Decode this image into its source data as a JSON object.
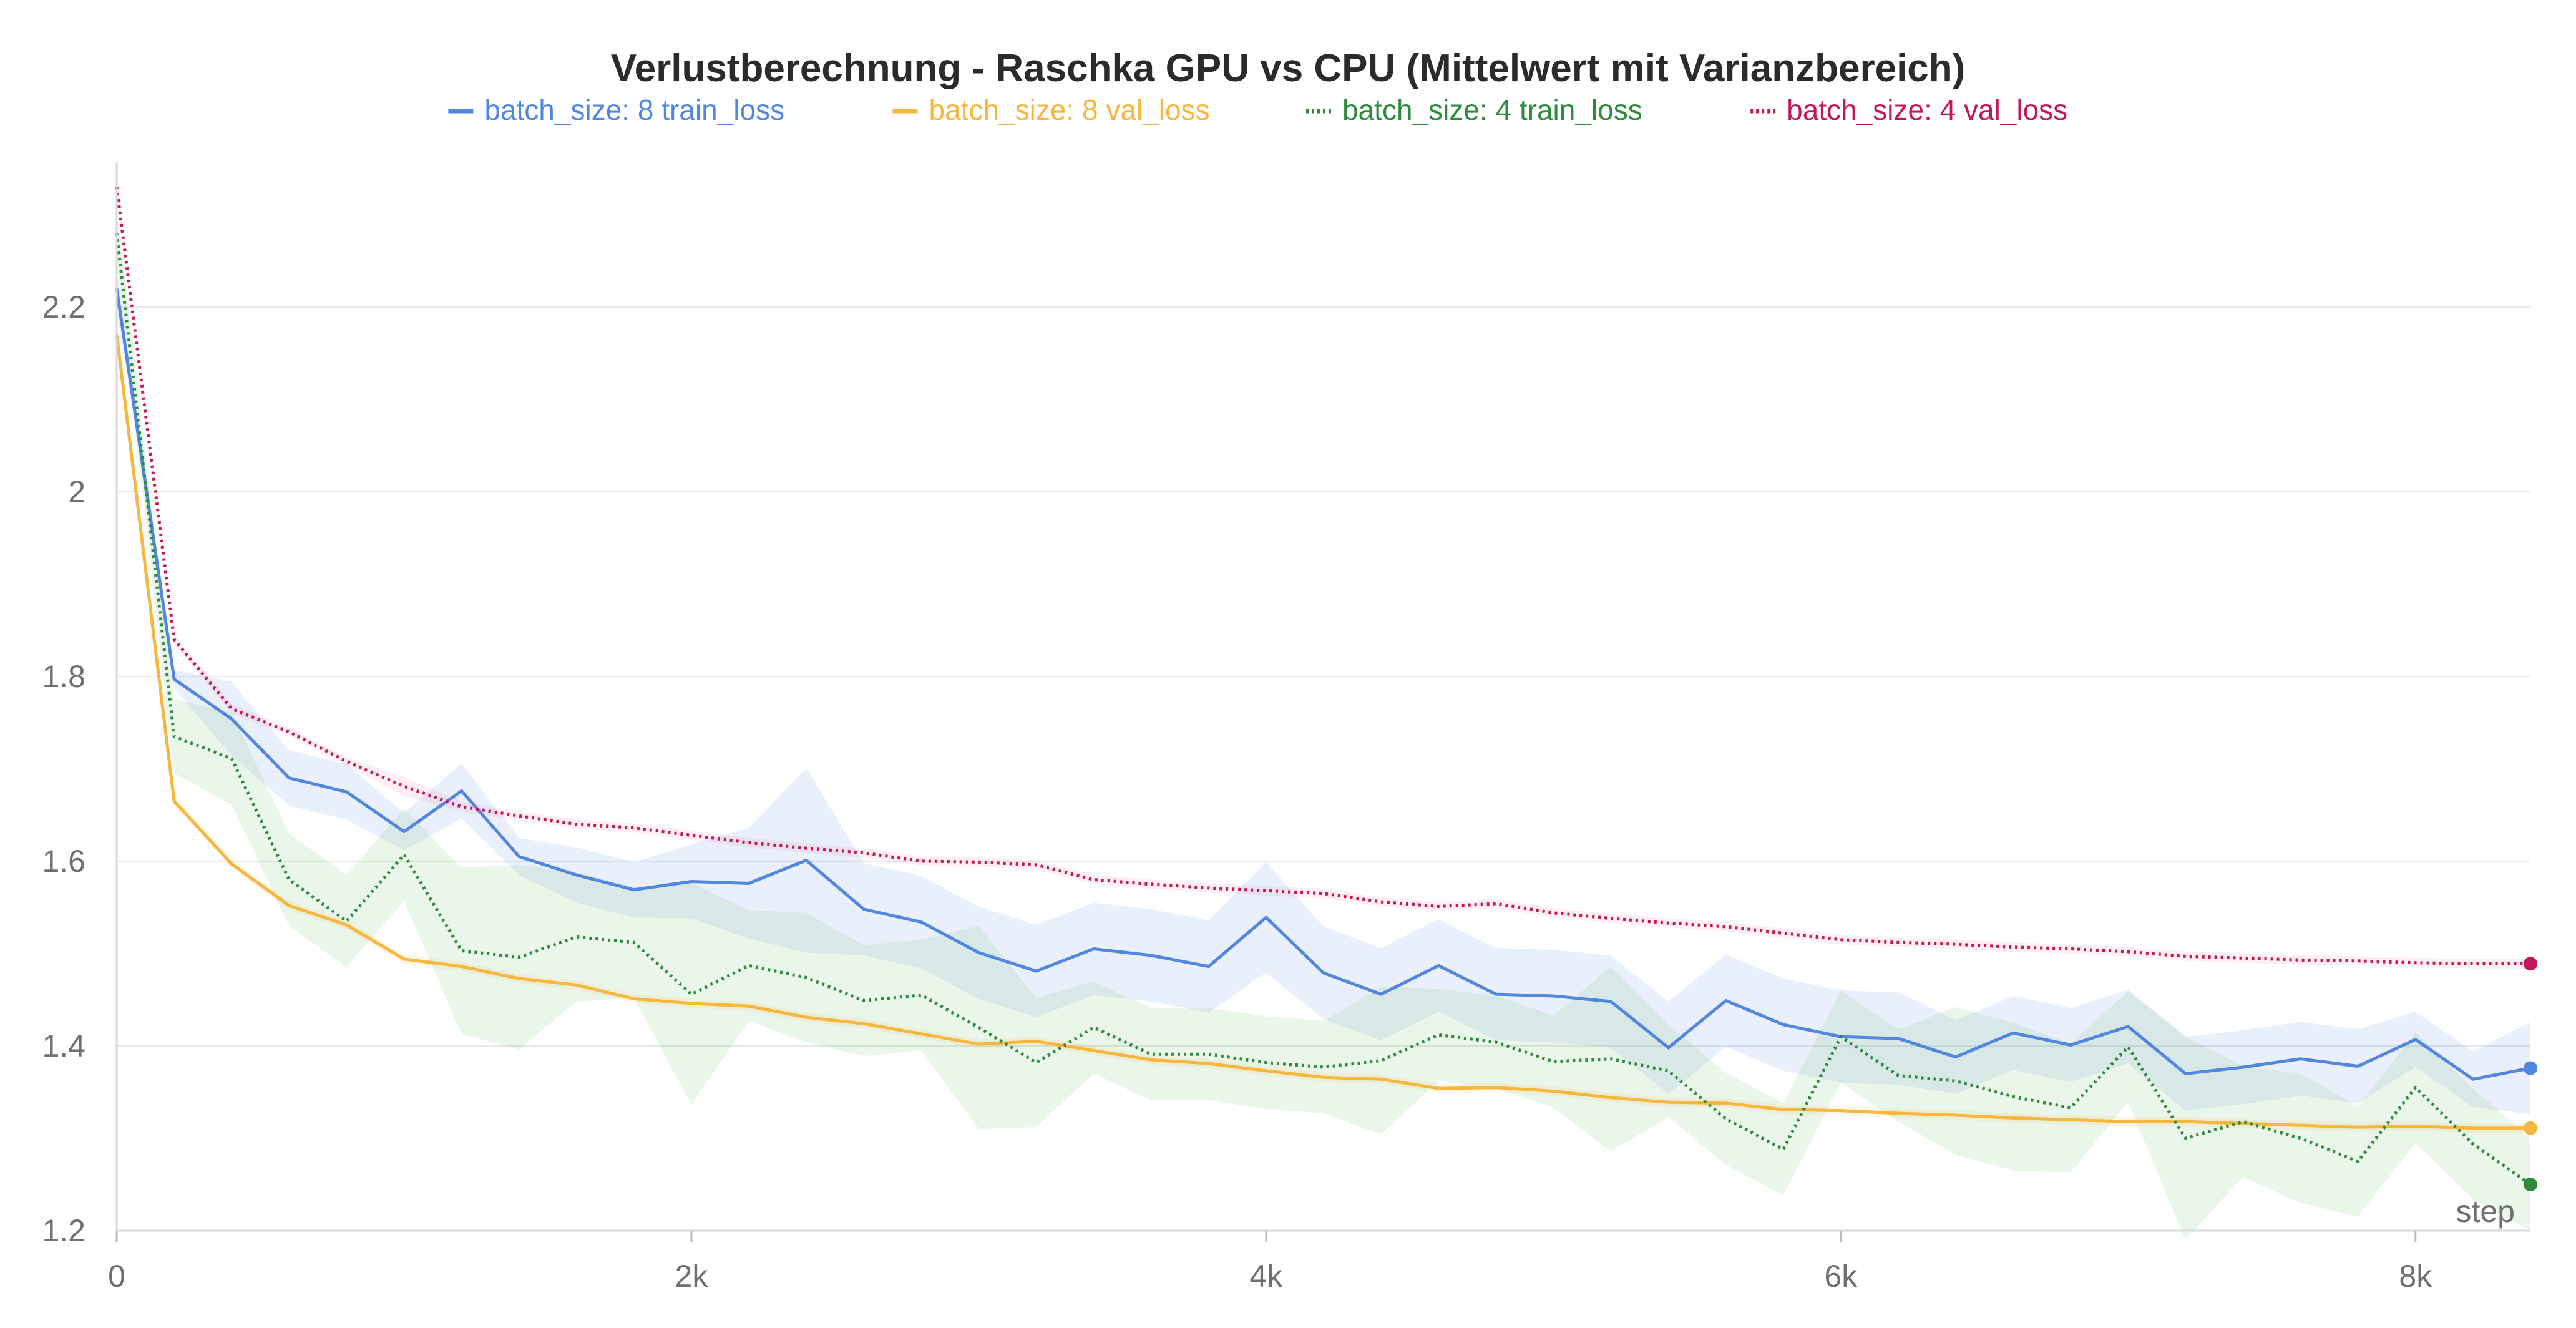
{
  "chart_data": {
    "type": "line",
    "title": "Verlustberechnung - Raschka GPU vs CPU (Mittelwert mit Varianzbereich)",
    "xlabel": "step",
    "ylabel": "",
    "xlim": [
      0,
      8400
    ],
    "ylim": [
      1.2,
      2.36
    ],
    "x_ticks": [
      0,
      2000,
      4000,
      6000,
      8000
    ],
    "x_tick_labels": [
      "0",
      "2k",
      "4k",
      "6k",
      "8k"
    ],
    "y_ticks": [
      1.2,
      1.4,
      1.6,
      1.8,
      2.0,
      2.2
    ],
    "y_tick_labels": [
      "1.2",
      "1.4",
      "1.6",
      "1.8",
      "2",
      "2.2"
    ],
    "grid": true,
    "legend_position": "top-center",
    "series": [
      {
        "name": "batch_size: 8 train_loss",
        "color": "#5287e0",
        "style": "solid",
        "band_color": "#5287e0",
        "x": [
          0,
          200,
          400,
          600,
          800,
          1000,
          1200,
          1400,
          1600,
          1800,
          2000,
          2200,
          2400,
          2600,
          2800,
          3000,
          3200,
          3400,
          3600,
          3800,
          4000,
          4200,
          4400,
          4600,
          4800,
          5000,
          5200,
          5400,
          5600,
          5800,
          6000,
          6200,
          6400,
          6600,
          6800,
          7000,
          7200,
          7400,
          7600,
          7800,
          8000,
          8200,
          8400
        ],
        "y": [
          2.22,
          1.797,
          1.754,
          1.69,
          1.675,
          1.632,
          1.676,
          1.605,
          1.585,
          1.569,
          1.578,
          1.576,
          1.601,
          1.548,
          1.534,
          1.501,
          1.481,
          1.505,
          1.498,
          1.486,
          1.539,
          1.479,
          1.456,
          1.487,
          1.456,
          1.454,
          1.448,
          1.398,
          1.449,
          1.423,
          1.41,
          1.408,
          1.388,
          1.414,
          1.401,
          1.421,
          1.37,
          1.377,
          1.386,
          1.378,
          1.407,
          1.364,
          1.376
        ],
        "band": [
          0.02,
          0.01,
          0.04,
          0.03,
          0.03,
          0.02,
          0.03,
          0.02,
          0.03,
          0.03,
          0.04,
          0.06,
          0.1,
          0.05,
          0.05,
          0.05,
          0.05,
          0.05,
          0.05,
          0.05,
          0.06,
          0.05,
          0.05,
          0.05,
          0.05,
          0.05,
          0.05,
          0.05,
          0.05,
          0.05,
          0.05,
          0.05,
          0.04,
          0.04,
          0.04,
          0.04,
          0.04,
          0.04,
          0.04,
          0.04,
          0.03,
          0.03,
          0.05
        ]
      },
      {
        "name": "batch_size: 8 val_loss",
        "color": "#f6b73c",
        "style": "solid",
        "band_color": "#f6b73c",
        "x": [
          0,
          200,
          400,
          600,
          800,
          1000,
          1200,
          1400,
          1600,
          1800,
          2000,
          2200,
          2400,
          2600,
          2800,
          3000,
          3200,
          3400,
          3600,
          3800,
          4000,
          4200,
          4400,
          4600,
          4800,
          5000,
          5200,
          5400,
          5600,
          5800,
          6000,
          6200,
          6400,
          6600,
          6800,
          7000,
          7200,
          7400,
          7600,
          7800,
          8000,
          8200,
          8400
        ],
        "y": [
          2.17,
          1.665,
          1.597,
          1.552,
          1.531,
          1.494,
          1.486,
          1.473,
          1.466,
          1.451,
          1.446,
          1.443,
          1.431,
          1.424,
          1.413,
          1.402,
          1.405,
          1.395,
          1.385,
          1.381,
          1.373,
          1.366,
          1.364,
          1.354,
          1.355,
          1.351,
          1.344,
          1.339,
          1.338,
          1.331,
          1.33,
          1.327,
          1.325,
          1.322,
          1.32,
          1.318,
          1.318,
          1.316,
          1.314,
          1.312,
          1.313,
          1.311,
          1.311
        ],
        "band": [
          0.01,
          0.005,
          0.005,
          0.005,
          0.005,
          0.005,
          0.005,
          0.005,
          0.005,
          0.005,
          0.005,
          0.005,
          0.005,
          0.005,
          0.005,
          0.005,
          0.005,
          0.005,
          0.005,
          0.005,
          0.005,
          0.005,
          0.005,
          0.005,
          0.005,
          0.005,
          0.005,
          0.005,
          0.005,
          0.005,
          0.005,
          0.005,
          0.005,
          0.005,
          0.005,
          0.005,
          0.005,
          0.005,
          0.005,
          0.005,
          0.005,
          0.005,
          0.005
        ]
      },
      {
        "name": "batch_size: 4 train_loss",
        "color": "#2e8b3e",
        "style": "dotted",
        "band_color": "#5cb85c",
        "x": [
          0,
          200,
          400,
          600,
          800,
          1000,
          1200,
          1400,
          1600,
          1800,
          2000,
          2200,
          2400,
          2600,
          2800,
          3000,
          3200,
          3400,
          3600,
          3800,
          4000,
          4200,
          4400,
          4600,
          4800,
          5000,
          5200,
          5400,
          5600,
          5800,
          6000,
          6200,
          6400,
          6600,
          6800,
          7000,
          7200,
          7400,
          7600,
          7800,
          8000,
          8200,
          8400
        ],
        "y": [
          2.28,
          1.735,
          1.711,
          1.58,
          1.535,
          1.607,
          1.503,
          1.496,
          1.518,
          1.512,
          1.456,
          1.487,
          1.474,
          1.449,
          1.455,
          1.42,
          1.382,
          1.42,
          1.391,
          1.391,
          1.382,
          1.377,
          1.384,
          1.412,
          1.404,
          1.383,
          1.386,
          1.373,
          1.321,
          1.288,
          1.41,
          1.368,
          1.362,
          1.345,
          1.333,
          1.399,
          1.3,
          1.318,
          1.3,
          1.275,
          1.355,
          1.294,
          1.25
        ],
        "band": [
          0.03,
          0.04,
          0.05,
          0.05,
          0.05,
          0.05,
          0.09,
          0.1,
          0.07,
          0.06,
          0.12,
          0.06,
          0.07,
          0.06,
          0.06,
          0.11,
          0.07,
          0.05,
          0.05,
          0.05,
          0.05,
          0.05,
          0.08,
          0.05,
          0.05,
          0.05,
          0.1,
          0.05,
          0.05,
          0.05,
          0.05,
          0.05,
          0.08,
          0.08,
          0.07,
          0.06,
          0.11,
          0.06,
          0.07,
          0.06,
          0.06,
          0.06,
          0.05
        ]
      },
      {
        "name": "batch_size: 4 val_loss",
        "color": "#c2185b",
        "style": "dotted",
        "band_color": "#e57399",
        "x": [
          0,
          200,
          400,
          600,
          800,
          1000,
          1200,
          1400,
          1600,
          1800,
          2000,
          2200,
          2400,
          2600,
          2800,
          3000,
          3200,
          3400,
          3600,
          3800,
          4000,
          4200,
          4400,
          4600,
          4800,
          5000,
          5200,
          5400,
          5600,
          5800,
          6000,
          6200,
          6400,
          6600,
          6800,
          7000,
          7200,
          7400,
          7600,
          7800,
          8000,
          8200,
          8400
        ],
        "y": [
          2.33,
          1.84,
          1.765,
          1.74,
          1.708,
          1.681,
          1.659,
          1.649,
          1.64,
          1.636,
          1.628,
          1.62,
          1.614,
          1.609,
          1.6,
          1.599,
          1.596,
          1.58,
          1.575,
          1.571,
          1.568,
          1.565,
          1.556,
          1.551,
          1.554,
          1.544,
          1.538,
          1.533,
          1.529,
          1.522,
          1.515,
          1.512,
          1.51,
          1.507,
          1.505,
          1.502,
          1.497,
          1.495,
          1.493,
          1.492,
          1.49,
          1.489,
          1.489
        ],
        "band": [
          0.01,
          0.005,
          0.005,
          0.005,
          0.005,
          0.01,
          0.005,
          0.005,
          0.005,
          0.005,
          0.005,
          0.005,
          0.005,
          0.005,
          0.005,
          0.005,
          0.005,
          0.005,
          0.005,
          0.005,
          0.005,
          0.005,
          0.005,
          0.005,
          0.005,
          0.005,
          0.005,
          0.005,
          0.005,
          0.005,
          0.005,
          0.005,
          0.005,
          0.005,
          0.005,
          0.005,
          0.005,
          0.005,
          0.005,
          0.005,
          0.005,
          0.005,
          0.005
        ]
      }
    ]
  }
}
